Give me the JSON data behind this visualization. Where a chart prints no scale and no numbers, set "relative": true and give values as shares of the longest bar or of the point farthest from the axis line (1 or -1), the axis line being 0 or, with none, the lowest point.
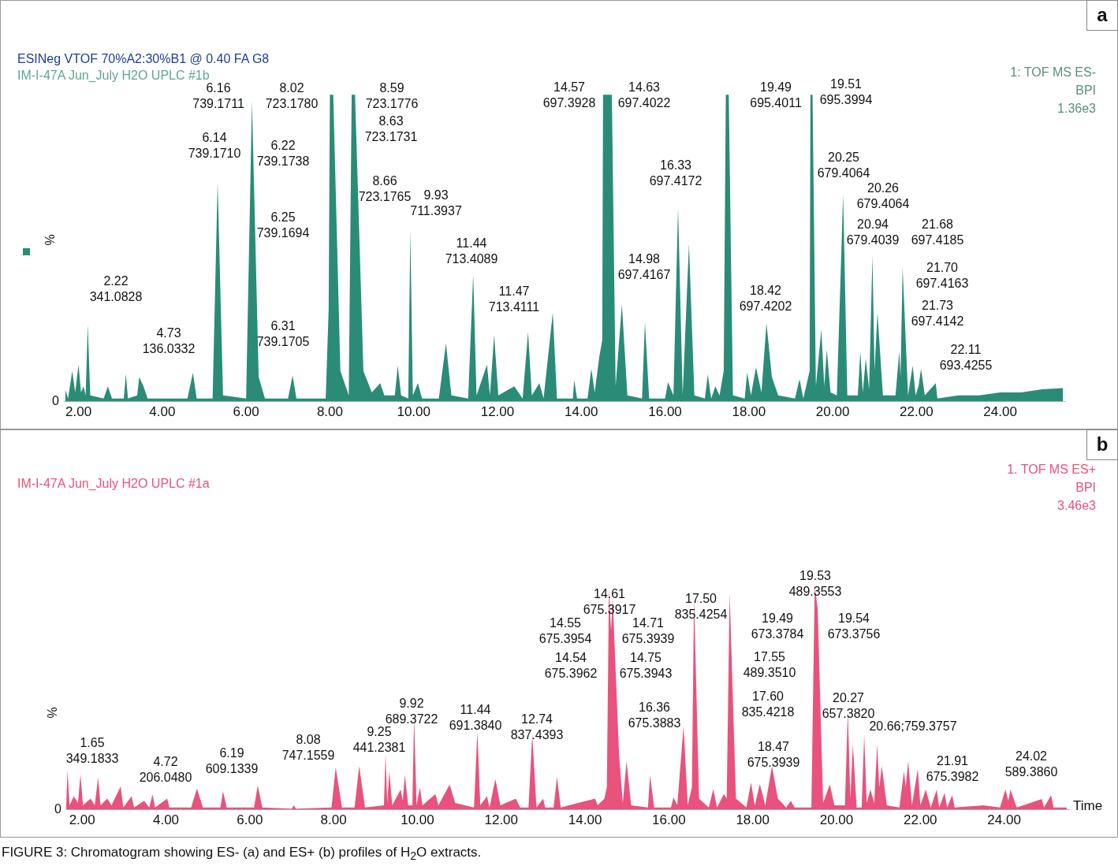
{
  "chart_data": [
    {
      "type": "area",
      "title": "ESINeg VTOF 70%A2:30%B1 @ 0.40 FA G8",
      "subtitle": "IM-I-47A Jun_July H2O UPLC #1b",
      "ylabel": "%",
      "relative": true,
      "marker": "none",
      "color": "#2a8c76",
      "xlim": [
        1.65,
        25.55
      ],
      "xticks": [
        {
          "value": 2,
          "label": "2.00"
        },
        {
          "value": 4,
          "label": "4.00"
        },
        {
          "value": 6,
          "label": "6.00"
        },
        {
          "value": 8,
          "label": "8.00"
        },
        {
          "value": 10,
          "label": "10.00"
        },
        {
          "value": 12,
          "label": "12.00"
        },
        {
          "value": 14,
          "label": "14.00"
        },
        {
          "value": 16,
          "label": "16.00"
        },
        {
          "value": 18,
          "label": "18.00"
        },
        {
          "value": 20,
          "label": "20.00"
        },
        {
          "value": 22,
          "label": "22.00"
        },
        {
          "value": 24,
          "label": "24.00"
        }
      ],
      "x": [
        1.68,
        1.75,
        1.85,
        1.92,
        2.0,
        2.06,
        2.12,
        2.17,
        2.22,
        2.28,
        2.6,
        2.7,
        2.8,
        3.08,
        3.13,
        3.18,
        3.4,
        3.45,
        3.55,
        3.65,
        4.6,
        4.73,
        4.82,
        5.2,
        5.32,
        5.45,
        6.0,
        6.14,
        6.3,
        6.45,
        7.0,
        7.11,
        7.2,
        7.9,
        7.97,
        8.0,
        8.08,
        8.25,
        8.45,
        8.52,
        8.6,
        8.8,
        9.0,
        9.2,
        9.3,
        9.55,
        9.62,
        9.7,
        9.87,
        9.92,
        9.98,
        10.1,
        10.2,
        10.6,
        10.77,
        10.9,
        11.3,
        11.42,
        11.5,
        11.75,
        11.82,
        11.92,
        12.02,
        12.4,
        12.6,
        12.73,
        12.82,
        13.0,
        13.1,
        13.32,
        13.42,
        13.8,
        13.83,
        13.9,
        14.15,
        14.24,
        14.32,
        14.43,
        14.5,
        14.52,
        14.73,
        14.82,
        14.97,
        15.1,
        15.45,
        15.52,
        15.62,
        16.0,
        16.07,
        16.2,
        16.31,
        16.42,
        16.57,
        16.7,
        16.95,
        17.02,
        17.1,
        17.2,
        17.3,
        17.4,
        17.45,
        17.52,
        17.62,
        17.9,
        17.96,
        18.05,
        18.17,
        18.3,
        18.42,
        18.55,
        18.7,
        19.1,
        19.21,
        19.3,
        19.45,
        19.47,
        19.52,
        19.6,
        19.73,
        19.8,
        19.86,
        19.95,
        20.1,
        20.25,
        20.35,
        20.6,
        20.66,
        20.72,
        20.79,
        20.87,
        20.95,
        21.0,
        21.07,
        21.2,
        21.5,
        21.59,
        21.62,
        21.67,
        21.8,
        21.91,
        21.98,
        22.05,
        22.11,
        22.2,
        22.46,
        22.5,
        23.0,
        23.5,
        24.0,
        24.5,
        25.0,
        25.5
      ],
      "values": [
        0.04,
        0.01,
        0.1,
        0.03,
        0.12,
        0.03,
        0.05,
        0.02,
        0.25,
        0.02,
        0.01,
        0.05,
        0.01,
        0.01,
        0.09,
        0.01,
        0.02,
        0.08,
        0.05,
        0.01,
        0.01,
        0.094,
        0.01,
        0.01,
        0.715,
        0.02,
        0.01,
        0.98,
        0.08,
        0.01,
        0.01,
        0.085,
        0.01,
        0.01,
        0.3,
        1.0,
        1.0,
        0.1,
        0.02,
        1.0,
        1.0,
        0.1,
        0.03,
        0.06,
        0.02,
        0.02,
        0.117,
        0.02,
        0.01,
        0.556,
        0.02,
        0.06,
        0.01,
        0.01,
        0.19,
        0.02,
        0.01,
        0.415,
        0.02,
        0.12,
        0.02,
        0.217,
        0.02,
        0.05,
        0.01,
        0.226,
        0.02,
        0.06,
        0.01,
        0.29,
        0.01,
        0.01,
        0.07,
        0.01,
        0.01,
        0.107,
        0.03,
        0.146,
        0.2,
        1.0,
        1.0,
        0.05,
        0.316,
        0.02,
        0.01,
        0.258,
        0.01,
        0.01,
        0.063,
        0.02,
        0.633,
        0.02,
        0.514,
        0.02,
        0.01,
        0.089,
        0.01,
        0.05,
        0.02,
        0.1,
        1.0,
        1.0,
        0.02,
        0.01,
        0.095,
        0.02,
        0.112,
        0.03,
        0.256,
        0.08,
        0.02,
        0.01,
        0.073,
        0.01,
        0.1,
        1.0,
        1.0,
        0.05,
        0.235,
        0.05,
        0.17,
        0.03,
        0.02,
        0.675,
        0.02,
        0.02,
        0.163,
        0.03,
        0.14,
        0.04,
        0.475,
        0.1,
        0.29,
        0.02,
        0.02,
        0.163,
        0.08,
        0.437,
        0.02,
        0.117,
        0.02,
        0.05,
        0.107,
        0.02,
        0.06,
        0.01,
        0.02,
        0.02,
        0.03,
        0.03,
        0.04,
        0.044
      ],
      "annotations": [
        "a",
        "1: TOF MS ES-\nBPI\n1.36e3",
        "0",
        "2.22\n341.0828",
        "4.73\n136.0332",
        "6.16\n739.1711",
        "6.14\n739.1710",
        "8.02\n723.1780",
        "6.22\n739.1738",
        "6.25\n739.1694",
        "6.31\n739.1705",
        "8.59\n723.1776",
        "8.63\n723.1731",
        "8.66\n723.1765",
        "9.93\n711.3937",
        "11.44\n713.4089",
        "11.47\n713.4111",
        "14.57\n697.3928",
        "14.63\n697.4022",
        "16.33\n697.4172",
        "14.98\n697.4167",
        "19.49\n695.4011",
        "19.51\n695.3994",
        "18.42\n697.4202",
        "20.25\n679.4064",
        "20.26\n679.4064",
        "20.94\n679.4039",
        "21.68\n697.4185",
        "21.70\n697.4163",
        "21.73\n697.4142",
        "22.11\n693.4255"
      ]
    },
    {
      "type": "area",
      "title": "IM-I-47A Jun_July H2O UPLC #1a",
      "xlabel": "Time",
      "ylabel": "%",
      "relative": true,
      "marker": "none",
      "color": "#e8527c",
      "xlim": [
        1.62,
        25.55
      ],
      "xticks": [
        {
          "value": 2,
          "label": "2.00"
        },
        {
          "value": 4,
          "label": "4.00"
        },
        {
          "value": 6,
          "label": "6.00"
        },
        {
          "value": 8,
          "label": "8.00"
        },
        {
          "value": 10,
          "label": "10.00"
        },
        {
          "value": 12,
          "label": "12.00"
        },
        {
          "value": 14,
          "label": "14.00"
        },
        {
          "value": 16,
          "label": "16.00"
        },
        {
          "value": 18,
          "label": "18.00"
        },
        {
          "value": 20,
          "label": "20.00"
        },
        {
          "value": 22,
          "label": "22.00"
        },
        {
          "value": 24,
          "label": "24.00"
        }
      ],
      "x": [
        1.62,
        1.65,
        1.7,
        1.8,
        1.9,
        1.96,
        2.02,
        2.2,
        2.3,
        2.38,
        2.44,
        2.6,
        2.7,
        2.92,
        2.98,
        3.18,
        3.24,
        3.48,
        3.6,
        3.68,
        3.74,
        4.03,
        4.08,
        4.6,
        4.74,
        4.88,
        5.3,
        5.36,
        5.45,
        6.1,
        6.19,
        6.3,
        7.0,
        7.05,
        7.1,
        7.95,
        8.05,
        8.2,
        8.5,
        8.61,
        8.75,
        9.2,
        9.24,
        9.28,
        9.33,
        9.4,
        9.6,
        9.65,
        9.7,
        9.78,
        9.88,
        9.92,
        9.98,
        10.06,
        10.12,
        10.43,
        10.5,
        10.77,
        10.9,
        11.35,
        11.43,
        11.5,
        11.66,
        11.72,
        11.86,
        11.98,
        12.35,
        12.45,
        12.65,
        12.74,
        12.84,
        13.0,
        13.05,
        13.25,
        13.33,
        13.42,
        14.24,
        14.3,
        14.46,
        14.52,
        14.57,
        14.62,
        14.66,
        14.81,
        14.9,
        14.99,
        15.1,
        15.5,
        15.55,
        15.65,
        16.05,
        16.11,
        16.2,
        16.35,
        16.45,
        16.55,
        16.6,
        16.72,
        16.95,
        17.06,
        17.15,
        17.31,
        17.38,
        17.45,
        17.6,
        17.85,
        17.96,
        18.05,
        18.17,
        18.3,
        18.46,
        18.6,
        18.8,
        18.91,
        19.0,
        19.4,
        19.48,
        19.55,
        19.68,
        19.84,
        19.95,
        20.2,
        20.27,
        20.33,
        20.39,
        20.48,
        20.6,
        20.66,
        20.72,
        20.81,
        20.9,
        20.97,
        21.02,
        21.08,
        21.2,
        21.5,
        21.61,
        21.65,
        21.71,
        21.8,
        21.94,
        22.0,
        22.13,
        22.25,
        22.39,
        22.45,
        22.58,
        22.64,
        22.76,
        22.82,
        23.5,
        23.9,
        24.03,
        24.1,
        24.15,
        24.3,
        24.9,
        24.95,
        25.12,
        25.18,
        25.5
      ],
      "values": [
        0.02,
        0.177,
        0.02,
        0.06,
        0.03,
        0.158,
        0.02,
        0.05,
        0.02,
        0.145,
        0.02,
        0.05,
        0.02,
        0.104,
        0.01,
        0.06,
        0.01,
        0.04,
        0.01,
        0.068,
        0.01,
        0.05,
        0.01,
        0.01,
        0.095,
        0.01,
        0.01,
        0.083,
        0.01,
        0.01,
        0.108,
        0.01,
        0.005,
        0.02,
        0.005,
        0.01,
        0.19,
        0.01,
        0.01,
        0.195,
        0.01,
        0.02,
        0.246,
        0.03,
        0.172,
        0.02,
        0.09,
        0.04,
        0.156,
        0.02,
        0.02,
        0.414,
        0.02,
        0.1,
        0.02,
        0.07,
        0.02,
        0.113,
        0.03,
        0.01,
        0.351,
        0.02,
        0.06,
        0.01,
        0.137,
        0.02,
        0.05,
        0.01,
        0.01,
        0.337,
        0.01,
        0.05,
        0.01,
        0.01,
        0.147,
        0.01,
        0.05,
        0.02,
        0.05,
        0.1,
        0.99,
        0.8,
        0.945,
        0.25,
        0.03,
        0.217,
        0.02,
        0.01,
        0.154,
        0.01,
        0.01,
        0.055,
        0.02,
        0.375,
        0.02,
        0.1,
        0.95,
        0.05,
        0.01,
        0.092,
        0.01,
        0.07,
        0.05,
        0.97,
        0.05,
        0.01,
        0.122,
        0.02,
        0.115,
        0.02,
        0.195,
        0.05,
        0.01,
        0.04,
        0.01,
        0.01,
        1.0,
        0.9,
        0.03,
        0.113,
        0.02,
        0.02,
        0.439,
        0.05,
        0.294,
        0.01,
        0.01,
        0.335,
        0.03,
        0.09,
        0.03,
        0.294,
        0.1,
        0.195,
        0.02,
        0.01,
        0.172,
        0.1,
        0.217,
        0.02,
        0.183,
        0.02,
        0.09,
        0.01,
        0.09,
        0.01,
        0.075,
        0.01,
        0.065,
        0.01,
        0.02,
        0.01,
        0.09,
        0.04,
        0.09,
        0.01,
        0.048,
        0.01,
        0.065,
        0.01,
        0.01
      ],
      "annotations": [
        "b",
        "1. TOF MS ES+\nBPI\n3.46e3",
        "0",
        "1.65\n349.1833",
        "4.72\n206.0480",
        "6.19\n609.1339",
        "8.08\n747.1559",
        "9.25\n441.2381",
        "9.92\n689.3722",
        "11.44\n691.3840",
        "12.74\n837.4393",
        "14.54\n675.3962",
        "14.55\n675.3954",
        "14.61\n675.3917",
        "14.71\n675.3939",
        "14.75\n675.3943",
        "16.36\n675.3883",
        "17.50\n835.4254",
        "17.55\n489.3510",
        "17.60\n835.4218",
        "18.47\n675.3939",
        "19.49\n673.3784",
        "19.53\n489.3553",
        "19.54\n673.3756",
        "20.27\n657.3820",
        "20.66;759.3757",
        "21.91\n675.3982",
        "24.02\n589.3860",
        "FIGURE 3: Chromatogram showing ES- (a) and ES+ (b) profiles of H$_{2}$O extracts."
      ]
    }
  ]
}
